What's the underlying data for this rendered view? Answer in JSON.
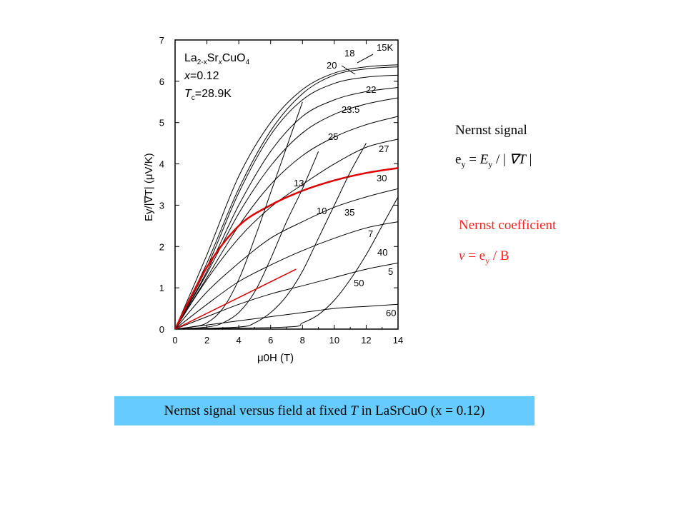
{
  "chart_data": {
    "type": "line",
    "title": "",
    "xlabel": "μ0H (T)",
    "ylabel": "Ey/|∇T| (μV/K)",
    "xlim": [
      0,
      14
    ],
    "ylim": [
      0,
      7
    ],
    "x_ticks": [
      "0",
      "2",
      "4",
      "6",
      "8",
      "10",
      "12",
      "14"
    ],
    "y_ticks": [
      "0",
      "1",
      "2",
      "3",
      "4",
      "5",
      "6",
      "7"
    ],
    "inset_text": {
      "line1_main": "La",
      "line1_sub1": "2-x",
      "line1_main2": "Sr",
      "line1_sub2": "x",
      "line1_main3": "CuO",
      "line1_sub3": "4",
      "line2_var": "x",
      "line2_rest": "=0.12",
      "line3_var": "T",
      "line3_sub": "c",
      "line3_rest": "=28.9K"
    },
    "series": [
      {
        "name": "15K",
        "x": [
          0,
          2,
          4,
          6,
          8,
          10,
          12,
          14
        ],
        "y": [
          0,
          1.8,
          3.7,
          5.0,
          5.8,
          6.2,
          6.35,
          6.4
        ]
      },
      {
        "name": "18",
        "x": [
          0,
          2,
          4,
          6,
          8,
          10,
          12,
          14
        ],
        "y": [
          0,
          1.6,
          3.4,
          4.8,
          5.7,
          6.15,
          6.3,
          6.35
        ]
      },
      {
        "name": "20",
        "x": [
          0,
          2,
          4,
          6,
          8,
          10,
          12,
          14
        ],
        "y": [
          0,
          1.5,
          3.3,
          4.7,
          5.55,
          5.95,
          6.1,
          6.15
        ]
      },
      {
        "name": "22",
        "x": [
          0,
          2,
          4,
          6,
          8,
          10,
          12,
          14
        ],
        "y": [
          0,
          1.4,
          3.0,
          4.3,
          5.15,
          5.55,
          5.75,
          5.85
        ]
      },
      {
        "name": "23.5",
        "x": [
          0,
          2,
          4,
          6,
          8,
          10,
          12,
          14
        ],
        "y": [
          0,
          1.35,
          2.8,
          3.95,
          4.75,
          5.2,
          5.45,
          5.6
        ]
      },
      {
        "name": "25",
        "x": [
          0,
          2,
          4,
          6,
          8,
          10,
          12,
          14
        ],
        "y": [
          0,
          1.25,
          2.5,
          3.5,
          4.2,
          4.65,
          4.95,
          5.15
        ]
      },
      {
        "name": "27",
        "x": [
          0,
          2,
          4,
          6,
          8,
          10,
          12,
          14
        ],
        "y": [
          0,
          1.2,
          2.2,
          2.95,
          3.5,
          4.0,
          4.4,
          4.6
        ]
      },
      {
        "name": "30",
        "x": [
          0,
          2,
          4,
          6,
          8,
          10,
          12,
          14
        ],
        "y": [
          0,
          1.5,
          2.5,
          3.0,
          3.35,
          3.6,
          3.78,
          3.9
        ],
        "color": "#dd0000"
      },
      {
        "name": "35",
        "x": [
          0,
          2,
          4,
          6,
          8,
          10,
          12,
          14
        ],
        "y": [
          0,
          0.9,
          1.6,
          2.2,
          2.6,
          2.95,
          3.2,
          3.4
        ]
      },
      {
        "name": "40",
        "x": [
          0,
          2,
          4,
          6,
          8,
          10,
          12,
          14
        ],
        "y": [
          0,
          0.6,
          1.15,
          1.55,
          1.9,
          2.2,
          2.45,
          2.6
        ]
      },
      {
        "name": "50",
        "x": [
          0,
          2,
          4,
          6,
          8,
          10,
          12,
          14
        ],
        "y": [
          0,
          0.3,
          0.6,
          0.85,
          1.05,
          1.25,
          1.45,
          1.6
        ]
      },
      {
        "name": "60",
        "x": [
          0,
          2,
          4,
          6,
          8,
          10,
          12,
          14
        ],
        "y": [
          0,
          0.1,
          0.2,
          0.3,
          0.4,
          0.5,
          0.55,
          0.6
        ]
      },
      {
        "name": "13",
        "x": [
          0,
          1,
          2,
          3,
          4,
          5,
          6,
          7,
          8
        ],
        "y": [
          0,
          0.05,
          0.15,
          0.5,
          1.2,
          2.2,
          3.3,
          4.4,
          5.5
        ]
      },
      {
        "name": "10",
        "x": [
          0,
          2,
          3,
          4,
          5,
          6,
          7,
          8,
          9
        ],
        "y": [
          0,
          0.05,
          0.15,
          0.4,
          0.9,
          1.7,
          2.6,
          3.4,
          4.3
        ]
      },
      {
        "name": "7",
        "x": [
          0,
          4,
          5,
          6,
          7,
          8,
          9,
          10,
          11,
          12
        ],
        "y": [
          0,
          0.05,
          0.15,
          0.4,
          0.8,
          1.4,
          2.2,
          3.0,
          3.8,
          4.5
        ]
      },
      {
        "name": "5",
        "x": [
          0,
          7,
          8,
          9,
          10,
          11,
          12,
          13,
          14
        ],
        "y": [
          0,
          0.05,
          0.15,
          0.35,
          0.7,
          1.2,
          1.8,
          2.5,
          3.2
        ]
      }
    ],
    "labels": [
      "15K",
      "18",
      "20",
      "22",
      "23.5",
      "25",
      "27",
      "30",
      "13",
      "10",
      "35",
      "7",
      "40",
      "5",
      "50",
      "60"
    ],
    "red_linear": {
      "x": [
        0,
        7.6
      ],
      "y": [
        0,
        1.45
      ],
      "color": "#dd0000"
    }
  },
  "side": {
    "signal_title": "Nernst signal",
    "signal_formula_a": "e",
    "signal_formula_a_sub": "y",
    "signal_formula_b": " = ",
    "signal_formula_c": "E",
    "signal_formula_c_sub": "y",
    "signal_formula_d": " / | ",
    "signal_formula_e": "∇T",
    "signal_formula_f": " |",
    "coef_title": "Nernst coefficient",
    "coef_nu": "ν",
    "coef_eq": "  =  e",
    "coef_sub": "y",
    "coef_rest": " / B",
    "coef_color": "#ff2020"
  },
  "caption": {
    "text_a": "Nernst signal versus field at fixed ",
    "text_t": "T",
    "text_b": " in LaSrCuO (x = 0.12)",
    "bg": "#66ccff"
  }
}
